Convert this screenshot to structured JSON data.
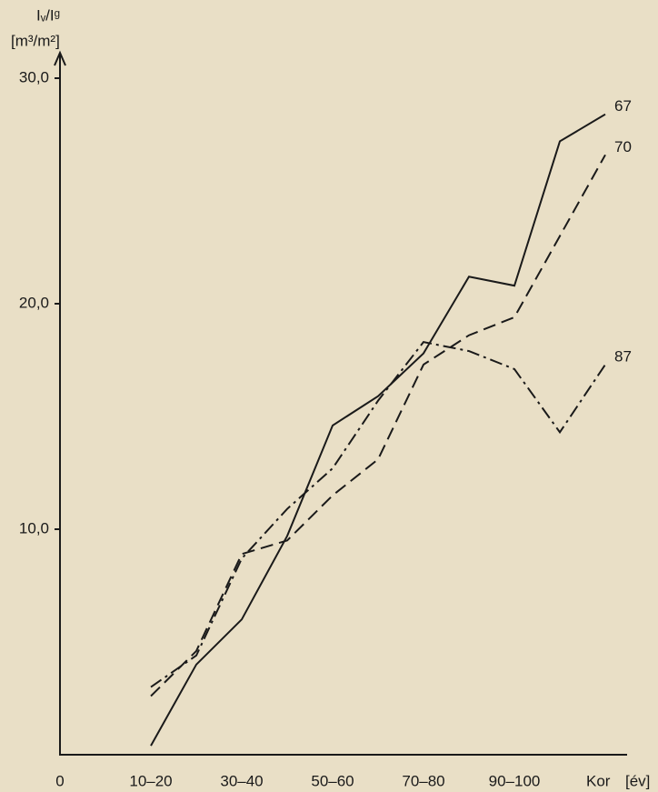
{
  "chart_data": {
    "type": "line",
    "y_label": "Iᵥ/Iᵍ",
    "y_unit": "[m³/m²]",
    "x_label": "Kor",
    "x_unit": "[év]",
    "categories": [
      "0",
      null,
      "10–20",
      null,
      "30–40",
      null,
      "50–60",
      null,
      "70–80",
      null,
      "90–100",
      null,
      null
    ],
    "ylim": [
      0,
      31
    ],
    "yticks": [
      {
        "value": 10,
        "label": "10,0"
      },
      {
        "value": 20,
        "label": "20,0"
      },
      {
        "value": 30,
        "label": "30,0"
      }
    ],
    "series": [
      {
        "name": "67",
        "color": "#1a1a1a",
        "dash": "solid",
        "values": [
          null,
          null,
          0.4,
          4.0,
          6.0,
          9.7,
          14.6,
          15.9,
          17.8,
          21.2,
          20.8,
          27.2,
          28.4
        ]
      },
      {
        "name": "70",
        "color": "#1a1a1a",
        "dash": "dashed",
        "values": [
          null,
          null,
          2.6,
          4.6,
          8.9,
          9.5,
          11.5,
          13.1,
          17.3,
          18.6,
          19.4,
          23.0,
          26.6
        ]
      },
      {
        "name": "87",
        "color": "#1a1a1a",
        "dash": "dashdot",
        "values": [
          null,
          null,
          3.0,
          4.4,
          8.7,
          10.9,
          12.7,
          15.7,
          18.3,
          17.9,
          17.1,
          14.3,
          17.3
        ]
      }
    ]
  }
}
